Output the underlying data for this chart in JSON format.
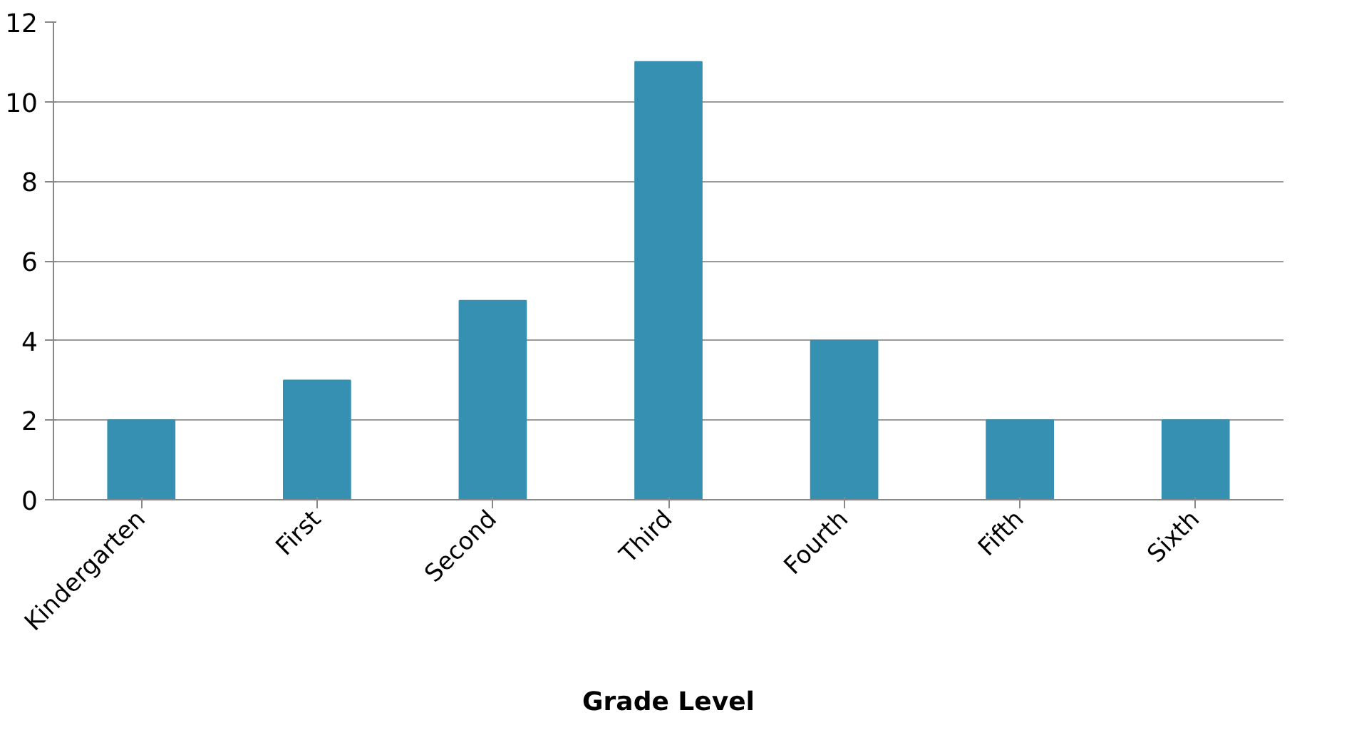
{
  "chart_data": {
    "type": "bar",
    "xlabel": "Grade Level",
    "categories": [
      "Kindergarten",
      "First",
      "Second",
      "Third",
      "Fourth",
      "Fifth",
      "Sixth"
    ],
    "values": [
      2,
      3,
      5,
      11,
      4,
      2,
      2
    ],
    "color": "#3690b2",
    "ylim": [
      0,
      12
    ],
    "yticks": [
      0,
      2,
      4,
      6,
      8,
      10,
      12
    ],
    "grid": "y"
  }
}
